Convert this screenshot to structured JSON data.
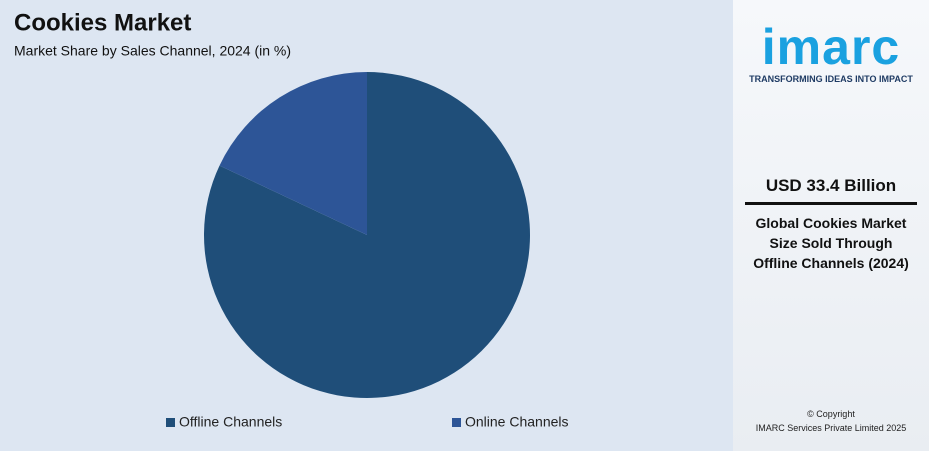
{
  "chart_data": {
    "type": "pie",
    "title": "Cookies Market",
    "subtitle": "Market Share by Sales Channel, 2024 (in %)",
    "categories": [
      "Offline Channels",
      "Online Channels"
    ],
    "values": [
      82,
      18
    ],
    "colors": [
      "#1f4e79",
      "#2d5597"
    ],
    "legend": "bottom",
    "start_angle": "top",
    "direction": "clockwise"
  },
  "side_panel": {
    "logo": "imarc",
    "tagline": "TRANSFORMING IDEAS INTO IMPACT",
    "headline": "USD 33.4 Billion",
    "description": "Global Cookies Market Size Sold Through Offline Channels (2024)",
    "copyright": "© Copyright",
    "company": "IMARC Services Private Limited 2025"
  }
}
